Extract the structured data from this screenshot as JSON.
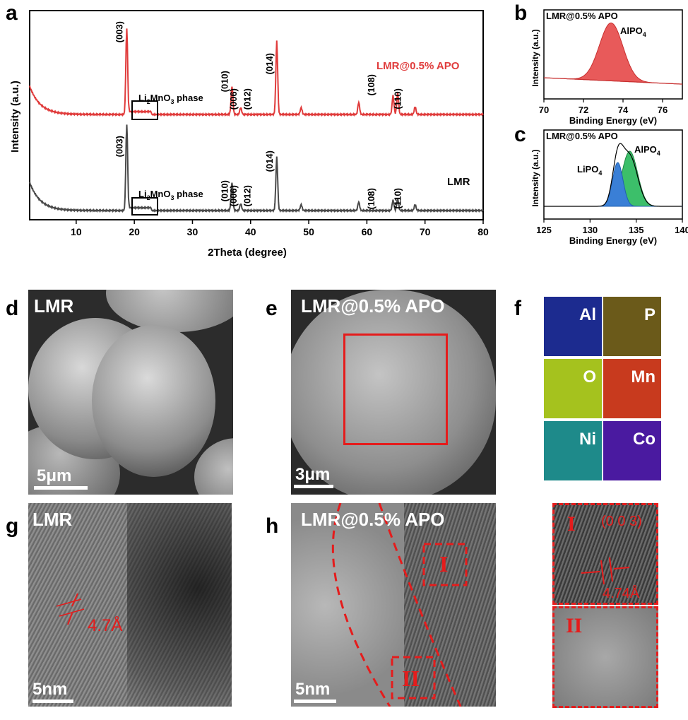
{
  "panels": {
    "a": "a",
    "b": "b",
    "c": "c",
    "d": "d",
    "e": "e",
    "f": "f",
    "g": "g",
    "h": "h"
  },
  "chart_data": [
    {
      "type": "line",
      "panel": "a",
      "xlabel": "2Theta (degree)",
      "ylabel": "Intensity (a.u.)",
      "xlim": [
        2,
        80
      ],
      "xticks": [
        10,
        20,
        30,
        40,
        50,
        60,
        70,
        80
      ],
      "series": [
        {
          "name": "LMR@0.5% APO",
          "color": "#e03c3c",
          "peaks": [
            [
              18.7,
              1.0
            ],
            [
              36.8,
              0.33
            ],
            [
              38.3,
              0.08
            ],
            [
              44.5,
              0.85
            ],
            [
              48.7,
              0.08
            ],
            [
              58.6,
              0.14
            ],
            [
              64.5,
              0.22
            ],
            [
              65.3,
              0.25
            ],
            [
              68.3,
              0.09
            ]
          ]
        },
        {
          "name": "LMR",
          "color": "#4a4a4a",
          "peaks": [
            [
              18.7,
              1.0
            ],
            [
              36.8,
              0.33
            ],
            [
              38.3,
              0.08
            ],
            [
              44.5,
              0.62
            ],
            [
              48.7,
              0.07
            ],
            [
              58.6,
              0.1
            ],
            [
              64.5,
              0.12
            ],
            [
              65.3,
              0.14
            ],
            [
              68.3,
              0.07
            ]
          ]
        }
      ],
      "annotations": [
        {
          "label": "(003)",
          "x": 18.7
        },
        {
          "label": "(010)",
          "x": 36.8
        },
        {
          "label": "(006)",
          "x": 38.3
        },
        {
          "label": "(012)",
          "x": 40.7
        },
        {
          "label": "(014)",
          "x": 44.5
        },
        {
          "label": "(108)",
          "x": 62.0
        },
        {
          "label": "(110)",
          "x": 66.6
        }
      ],
      "box_label": "Li2MnO3 phase"
    },
    {
      "type": "area",
      "panel": "b",
      "title": "LMR@0.5% APO",
      "xlabel": "Binding Energy (eV)",
      "ylabel": "Intensity (a.u.)",
      "xlim": [
        70,
        77
      ],
      "xticks": [
        70,
        72,
        74,
        76
      ],
      "series": [
        {
          "name": "AlPO4",
          "center": 73.4,
          "width": 0.75,
          "color": "#e85a5a"
        }
      ]
    },
    {
      "type": "area",
      "panel": "c",
      "title": "LMR@0.5% APO",
      "xlabel": "Binding Energy (eV)",
      "ylabel": "Intensity (a.u.)",
      "xlim": [
        125,
        140
      ],
      "xticks": [
        125,
        130,
        135,
        140
      ],
      "series": [
        {
          "name": "LiPO4",
          "center": 133.0,
          "width": 0.8,
          "color": "#3a7fd6"
        },
        {
          "name": "AlPO4",
          "center": 134.3,
          "width": 1.2,
          "color": "#3cbf6a"
        }
      ]
    }
  ],
  "texts": {
    "a_ytitle": "Intensity (a.u.)",
    "a_xtitle": "2Theta (degree)",
    "a_series_top": "LMR@0.5% APO",
    "a_series_bot": "LMR",
    "phase_top_pre": "Li",
    "phase_sub2": "2",
    "phase_mid": "MnO",
    "phase_sub3": "3",
    "phase_post": " phase",
    "b_title": "LMR@0.5% APO",
    "b_peak_main": "AlPO",
    "b_peak_sub": "4",
    "c_title": "LMR@0.5% APO",
    "c_peak1_main": "LiPO",
    "c_peak1_sub": "4",
    "c_peak2_main": "AlPO",
    "c_peak2_sub": "4",
    "d_label": "LMR",
    "d_scale": "5μm",
    "e_label": "LMR@0.5% APO",
    "e_scale": "3μm",
    "g_label": "LMR",
    "g_scale": "5nm",
    "g_spacing": "4.7Å",
    "h_label": "LMR@0.5% APO",
    "h_scale": "5nm",
    "h_region1": "I",
    "h_region2": "II",
    "inset_region1": "I",
    "inset_plane": "(0 0 3)",
    "inset_spacing": "4.74Å",
    "inset_region2": "II"
  },
  "eds": [
    {
      "element": "Al",
      "color": "#1c2b8f"
    },
    {
      "element": "P",
      "color": "#6b5a1a"
    },
    {
      "element": "O",
      "color": "#a5c21e"
    },
    {
      "element": "Mn",
      "color": "#c83a1e"
    },
    {
      "element": "Ni",
      "color": "#1e8a8a"
    },
    {
      "element": "Co",
      "color": "#4a1aa0"
    }
  ],
  "colors": {
    "accent_red": "#e03c3c",
    "red_annot": "#e51c1c"
  }
}
